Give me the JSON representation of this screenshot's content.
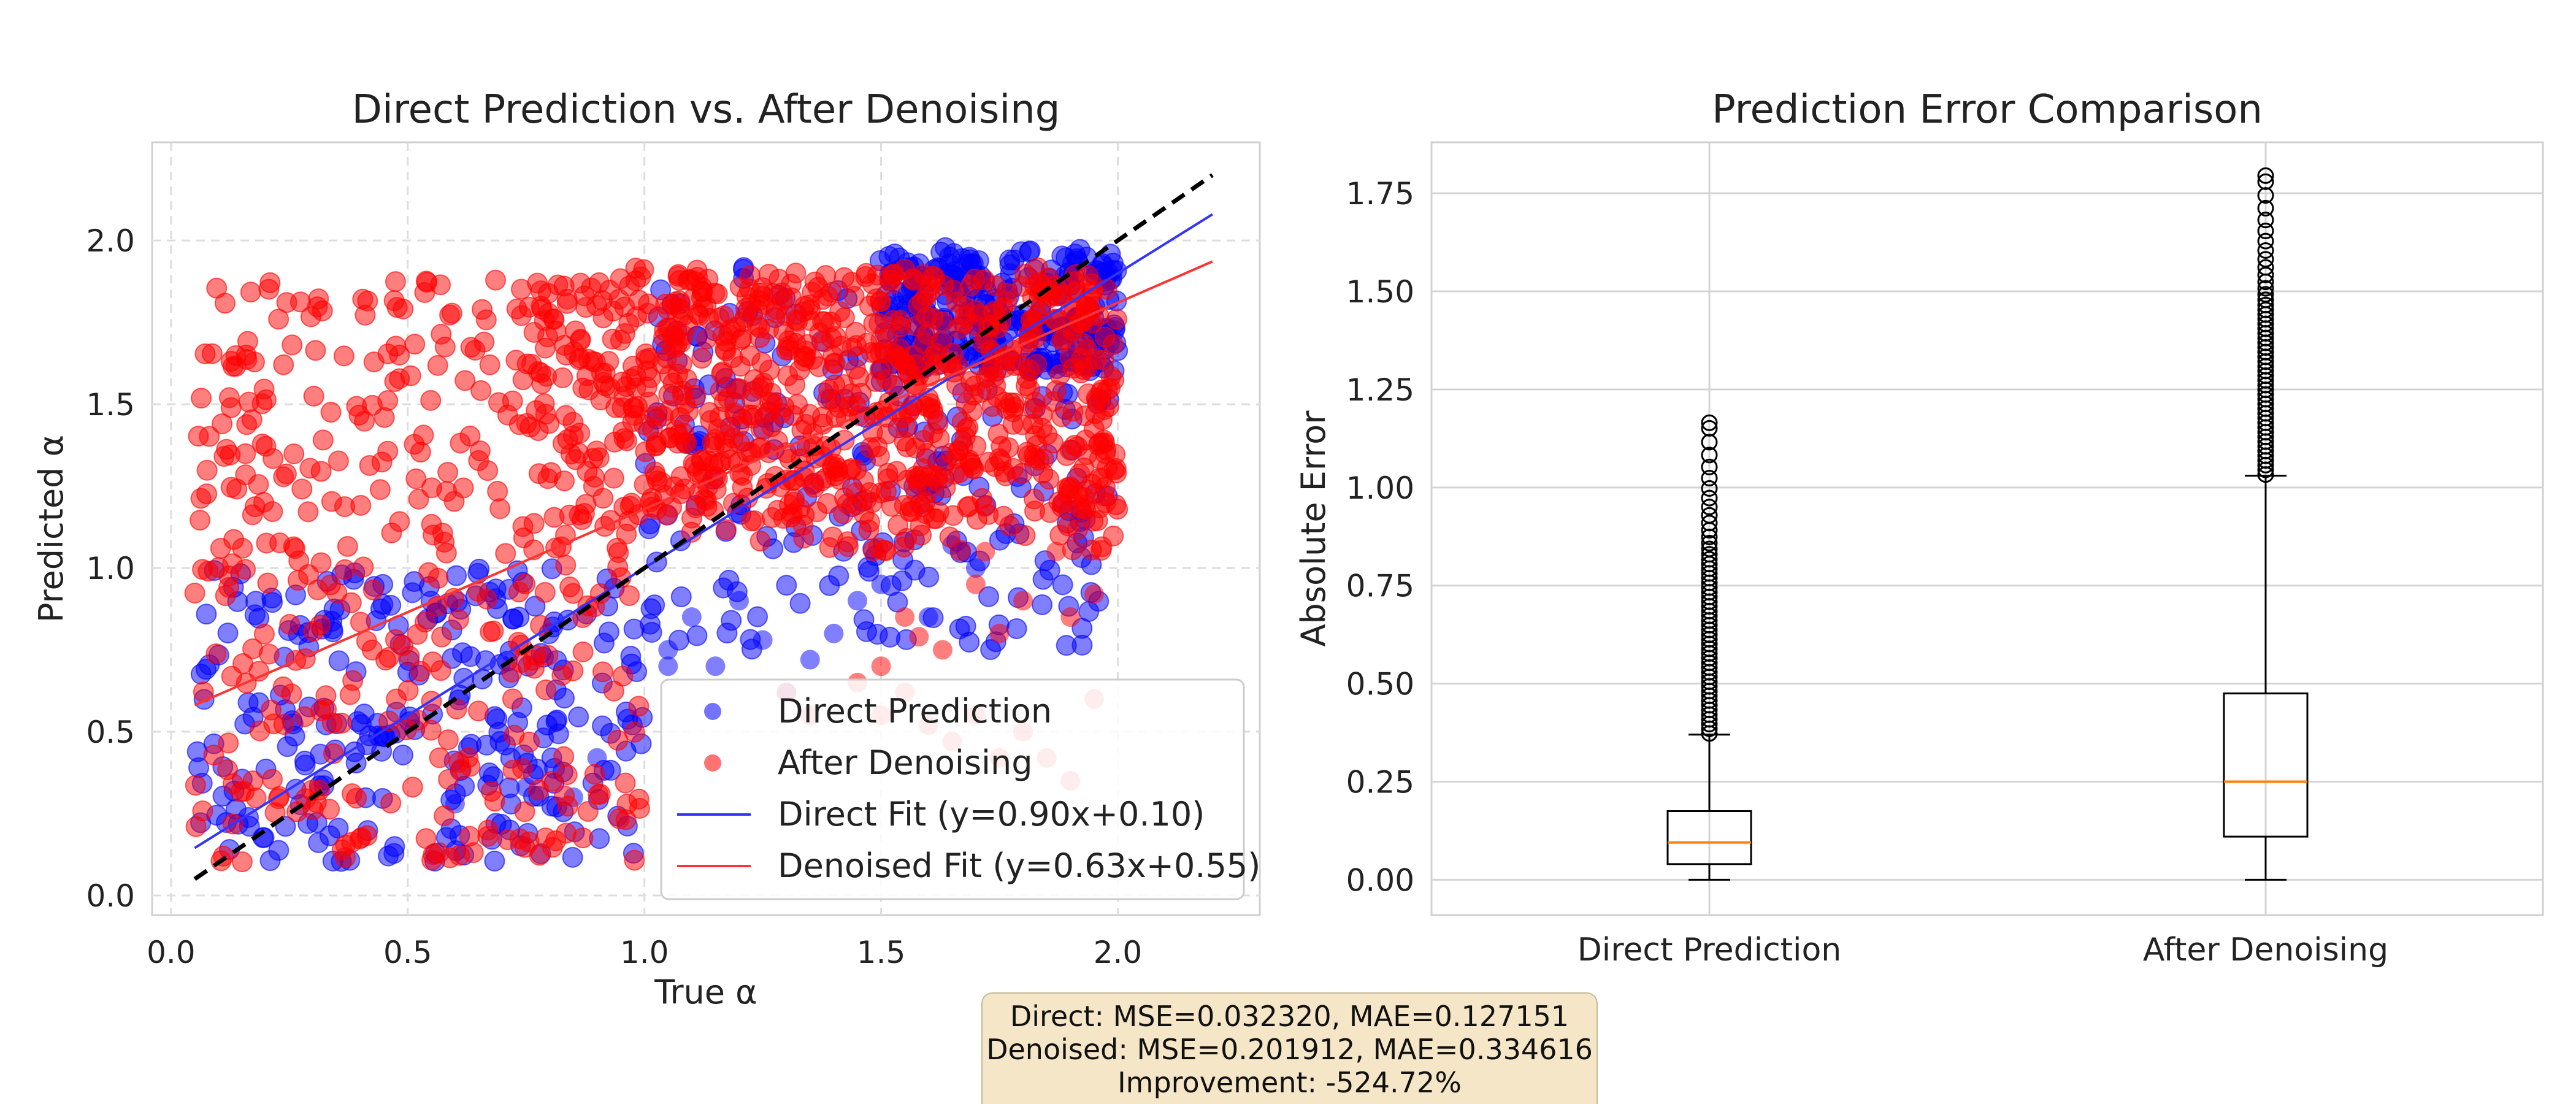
{
  "chart_data": [
    {
      "type": "scatter",
      "title": "Direct Prediction vs. After Denoising",
      "xlabel": "True α",
      "ylabel": "Predicted α",
      "xlim": [
        -0.04,
        2.3
      ],
      "ylim": [
        -0.06,
        2.3
      ],
      "xticks": [
        "0.0",
        "0.5",
        "1.0",
        "1.5",
        "2.0"
      ],
      "yticks": [
        "0.0",
        "0.5",
        "1.0",
        "1.5",
        "2.0"
      ],
      "grid": true,
      "legend_position": "lower-right",
      "series": [
        {
          "name": "Direct Prediction",
          "kind": "points",
          "color": "#0000ff",
          "description_regions": [
            [
              0.05,
              1.0,
              0.1,
              1.0
            ],
            [
              1.0,
              2.0,
              0.75,
              1.95
            ],
            [
              1.5,
              2.0,
              1.6,
              1.98
            ]
          ]
        },
        {
          "name": "After Denoising",
          "kind": "points",
          "color": "#ff0000",
          "description_regions": [
            [
              0.05,
              1.0,
              0.1,
              1.88
            ],
            [
              0.75,
              2.0,
              1.05,
              1.92
            ],
            [
              1.0,
              2.0,
              1.15,
              1.9
            ]
          ]
        },
        {
          "name": "Direct Fit (y=0.90x+0.10)",
          "kind": "line",
          "color": "#3333ff",
          "slope": 0.9,
          "intercept": 0.1,
          "x": [
            0.05,
            2.2
          ]
        },
        {
          "name": "Denoised Fit (y=0.63x+0.55)",
          "kind": "line",
          "color": "#ff3333",
          "slope": 0.63,
          "intercept": 0.55,
          "x": [
            0.05,
            2.2
          ]
        },
        {
          "name": "",
          "kind": "identity",
          "color": "#000000",
          "x": [
            0.05,
            2.2
          ]
        }
      ],
      "sample_points": {
        "direct_outliers": [
          [
            1.05,
            0.75
          ],
          [
            1.15,
            0.7
          ],
          [
            1.25,
            0.78
          ],
          [
            1.35,
            0.72
          ],
          [
            1.3,
            0.62
          ],
          [
            1.4,
            0.8
          ],
          [
            1.45,
            0.9
          ],
          [
            1.6,
            0.85
          ],
          [
            1.65,
            1.07
          ],
          [
            1.7,
            1.0
          ],
          [
            1.05,
            0.7
          ],
          [
            0.9,
            0.42
          ],
          [
            0.6,
            0.28
          ],
          [
            0.75,
            0.33
          ],
          [
            0.85,
            0.3
          ],
          [
            1.1,
            0.85
          ],
          [
            1.2,
            0.9
          ],
          [
            1.5,
            0.95
          ]
        ],
        "denoised_outliers": [
          [
            1.45,
            0.65
          ],
          [
            1.5,
            0.7
          ],
          [
            1.55,
            0.62
          ],
          [
            1.6,
            0.52
          ],
          [
            1.65,
            0.47
          ],
          [
            1.7,
            0.55
          ],
          [
            1.75,
            0.42
          ],
          [
            1.8,
            0.5
          ],
          [
            1.85,
            0.42
          ],
          [
            1.9,
            0.35
          ],
          [
            1.95,
            0.6
          ],
          [
            1.75,
            0.8
          ],
          [
            1.8,
            0.9
          ],
          [
            1.9,
            0.85
          ],
          [
            1.95,
            0.92
          ],
          [
            1.7,
            0.95
          ],
          [
            1.55,
            0.85
          ],
          [
            1.5,
            0.55
          ],
          [
            1.58,
            0.79
          ],
          [
            1.63,
            0.75
          ],
          [
            1.35,
            0.55
          ],
          [
            1.3,
            0.62
          ],
          [
            1.72,
            1.05
          ],
          [
            1.87,
            1.05
          ]
        ]
      }
    },
    {
      "type": "box",
      "title": "Prediction Error Comparison",
      "xlabel": "",
      "ylabel": "Absolute Error",
      "ylim": [
        -0.09,
        1.88
      ],
      "yticks": [
        "0.00",
        "0.25",
        "0.50",
        "0.75",
        "1.00",
        "1.25",
        "1.50",
        "1.75"
      ],
      "grid": true,
      "categories": [
        "Direct Prediction",
        "After Denoising"
      ],
      "boxes": [
        {
          "name": "Direct Prediction",
          "min": 0.0,
          "q1": 0.04,
          "median": 0.095,
          "q3": 0.175,
          "whisker_high": 0.37,
          "outlier_max": 1.165
        },
        {
          "name": "After Denoising",
          "min": 0.0,
          "q1": 0.11,
          "median": 0.25,
          "q3": 0.475,
          "whisker_high": 1.03,
          "outlier_max": 1.795
        }
      ],
      "median_color": "#ff7f0e"
    }
  ],
  "stats": {
    "line1": "Direct: MSE=0.032320, MAE=0.127151",
    "line2": "Denoised: MSE=0.201912, MAE=0.334616",
    "line3": "Improvement: -524.72%"
  }
}
